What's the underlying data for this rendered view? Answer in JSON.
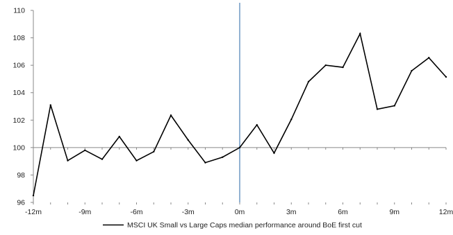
{
  "chart_data": {
    "type": "line",
    "title": "",
    "xlabel": "",
    "ylabel": "",
    "x": [
      -12,
      -11,
      -10,
      -9,
      -8,
      -7,
      -6,
      -5,
      -4,
      -3,
      -2,
      -1,
      0,
      1,
      2,
      3,
      4,
      5,
      6,
      7,
      8,
      9,
      10,
      11,
      12
    ],
    "series": [
      {
        "name": "MSCI UK Small vs Large Caps median performance around BoE first cut",
        "color": "#000000",
        "values": [
          96.5,
          103.1,
          99.05,
          99.8,
          99.15,
          100.8,
          99.05,
          99.7,
          102.35,
          100.55,
          98.9,
          99.3,
          100.0,
          101.65,
          99.6,
          102.05,
          104.8,
          106.0,
          105.85,
          108.3,
          102.8,
          103.05,
          105.6,
          106.55,
          105.15
        ]
      }
    ],
    "xlim": [
      -12,
      12
    ],
    "ylim": [
      96,
      110
    ],
    "x_tick_labels": [
      "-12m",
      "-9m",
      "-6m",
      "-3m",
      "0m",
      "3m",
      "6m",
      "9m",
      "12m"
    ],
    "y_tick_labels": [
      "96",
      "98",
      "100",
      "102",
      "104",
      "106",
      "108",
      "110"
    ],
    "reference_line": {
      "x": 0,
      "color": "#4a7fb5"
    },
    "baseline_y": 100,
    "grid": false,
    "legend_position": "bottom-center"
  }
}
